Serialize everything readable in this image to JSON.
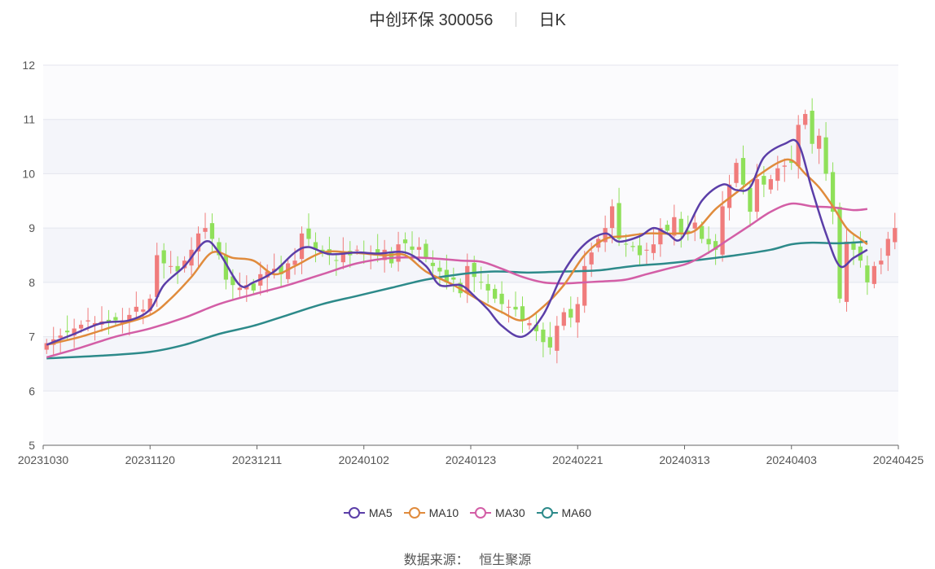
{
  "header": {
    "stock_name": "中创环保 300056",
    "period": "日K"
  },
  "source": {
    "label": "数据来源：",
    "name": "恒生聚源"
  },
  "legend": [
    {
      "name": "MA5",
      "color": "#5b3ea8"
    },
    {
      "name": "MA10",
      "color": "#e08b3c"
    },
    {
      "name": "MA30",
      "color": "#d35ea6"
    },
    {
      "name": "MA60",
      "color": "#2d8a8a"
    }
  ],
  "chart_data": {
    "type": "candlestick",
    "title": "中创环保 300056",
    "subtitle": "日K",
    "ylim": [
      5,
      12
    ],
    "yticks": [
      5,
      6,
      7,
      8,
      9,
      10,
      11,
      12
    ],
    "x_tick_labels": [
      "20231030",
      "20231120",
      "20231211",
      "20240102",
      "20240123",
      "20240221",
      "20240313",
      "20240403",
      "20240425"
    ],
    "grid": true,
    "legend_position": "bottom",
    "up_color": "#f07c7c",
    "down_color": "#8fe05a",
    "close": [
      6.88,
      6.95,
      7.02,
      7.08,
      7.15,
      7.22,
      7.3,
      7.25,
      7.28,
      7.27,
      7.3,
      7.3,
      7.4,
      7.55,
      7.5,
      7.7,
      8.5,
      8.35,
      8.3,
      8.2,
      8.4,
      8.6,
      8.9,
      9.0,
      8.8,
      8.5,
      8.05,
      7.95,
      7.9,
      7.95,
      7.85,
      8.15,
      8.2,
      8.25,
      8.15,
      8.35,
      8.4,
      8.9,
      8.8,
      8.6,
      8.55,
      8.5,
      8.4,
      8.55,
      8.5,
      8.6,
      8.52,
      8.55,
      8.5,
      8.6,
      8.35,
      8.7,
      8.72,
      8.6,
      8.65,
      8.45,
      8.3,
      8.2,
      8.0,
      8.05,
      7.8,
      8.3,
      8.1,
      8.0,
      7.85,
      7.7,
      7.6,
      7.55,
      7.5,
      7.3,
      7.25,
      7.1,
      6.9,
      6.8,
      7.2,
      7.45,
      7.35,
      7.6,
      8.3,
      8.55,
      8.8,
      9.0,
      9.4,
      8.8,
      8.7,
      8.65,
      8.5,
      8.6,
      8.7,
      9.0,
      8.95,
      9.2,
      8.92,
      8.9,
      9.1,
      8.8,
      8.7,
      8.6,
      9.4,
      9.8,
      10.2,
      9.8,
      9.3,
      9.9,
      9.8,
      9.9,
      10.1,
      10.15,
      10.2,
      10.9,
      11.1,
      10.55,
      10.7,
      10.0,
      9.3,
      7.7,
      8.75,
      8.6,
      8.4,
      8.0,
      8.3,
      8.4,
      8.8,
      9.0
    ],
    "ma5_anchors": [
      [
        0,
        6.85
      ],
      [
        4,
        7.05
      ],
      [
        8,
        7.25
      ],
      [
        12,
        7.3
      ],
      [
        15,
        7.5
      ],
      [
        17,
        7.95
      ],
      [
        20,
        8.3
      ],
      [
        23,
        8.75
      ],
      [
        25,
        8.55
      ],
      [
        28,
        7.95
      ],
      [
        30,
        8.0
      ],
      [
        33,
        8.2
      ],
      [
        36,
        8.55
      ],
      [
        38,
        8.65
      ],
      [
        41,
        8.52
      ],
      [
        45,
        8.55
      ],
      [
        48,
        8.53
      ],
      [
        52,
        8.55
      ],
      [
        55,
        8.3
      ],
      [
        57,
        7.95
      ],
      [
        60,
        7.95
      ],
      [
        62,
        7.75
      ],
      [
        64,
        7.5
      ],
      [
        66,
        7.2
      ],
      [
        69,
        7.0
      ],
      [
        72,
        7.4
      ],
      [
        75,
        8.2
      ],
      [
        78,
        8.7
      ],
      [
        81,
        8.9
      ],
      [
        83,
        8.75
      ],
      [
        86,
        8.85
      ],
      [
        88,
        9.0
      ],
      [
        90,
        8.9
      ],
      [
        92,
        8.8
      ],
      [
        95,
        9.5
      ],
      [
        98,
        9.8
      ],
      [
        100,
        9.7
      ],
      [
        102,
        9.75
      ],
      [
        104,
        10.3
      ],
      [
        107,
        10.55
      ],
      [
        109,
        10.55
      ],
      [
        111,
        9.7
      ],
      [
        113,
        8.9
      ],
      [
        115,
        8.3
      ],
      [
        117,
        8.45
      ],
      [
        119,
        8.6
      ]
    ],
    "ma10_anchors": [
      [
        0,
        6.85
      ],
      [
        5,
        7.0
      ],
      [
        10,
        7.2
      ],
      [
        15,
        7.4
      ],
      [
        18,
        7.7
      ],
      [
        21,
        8.1
      ],
      [
        24,
        8.55
      ],
      [
        27,
        8.45
      ],
      [
        30,
        8.4
      ],
      [
        33,
        8.15
      ],
      [
        36,
        8.3
      ],
      [
        40,
        8.55
      ],
      [
        44,
        8.55
      ],
      [
        49,
        8.5
      ],
      [
        52,
        8.5
      ],
      [
        55,
        8.2
      ],
      [
        59,
        7.95
      ],
      [
        63,
        7.65
      ],
      [
        66,
        7.45
      ],
      [
        69,
        7.3
      ],
      [
        72,
        7.55
      ],
      [
        75,
        7.95
      ],
      [
        78,
        8.5
      ],
      [
        81,
        8.8
      ],
      [
        84,
        8.85
      ],
      [
        87,
        8.9
      ],
      [
        91,
        8.9
      ],
      [
        94,
        8.95
      ],
      [
        97,
        9.35
      ],
      [
        100,
        9.65
      ],
      [
        103,
        9.95
      ],
      [
        106,
        10.2
      ],
      [
        108,
        10.25
      ],
      [
        110,
        10.0
      ],
      [
        112,
        9.75
      ],
      [
        114,
        9.4
      ],
      [
        116,
        9.0
      ],
      [
        118,
        8.8
      ],
      [
        119,
        8.7
      ]
    ],
    "ma30_anchors": [
      [
        0,
        6.62
      ],
      [
        5,
        6.8
      ],
      [
        10,
        7.0
      ],
      [
        15,
        7.15
      ],
      [
        20,
        7.35
      ],
      [
        25,
        7.6
      ],
      [
        30,
        7.78
      ],
      [
        35,
        7.95
      ],
      [
        40,
        8.15
      ],
      [
        45,
        8.35
      ],
      [
        50,
        8.45
      ],
      [
        55,
        8.45
      ],
      [
        60,
        8.4
      ],
      [
        63,
        8.38
      ],
      [
        66,
        8.25
      ],
      [
        69,
        8.1
      ],
      [
        72,
        8.0
      ],
      [
        75,
        7.98
      ],
      [
        78,
        8.0
      ],
      [
        81,
        8.02
      ],
      [
        84,
        8.05
      ],
      [
        87,
        8.15
      ],
      [
        90,
        8.25
      ],
      [
        93,
        8.35
      ],
      [
        96,
        8.55
      ],
      [
        99,
        8.8
      ],
      [
        102,
        9.05
      ],
      [
        105,
        9.3
      ],
      [
        108,
        9.45
      ],
      [
        111,
        9.4
      ],
      [
        114,
        9.38
      ],
      [
        117,
        9.33
      ],
      [
        119,
        9.35
      ]
    ],
    "ma60_anchors": [
      [
        0,
        6.6
      ],
      [
        8,
        6.65
      ],
      [
        15,
        6.72
      ],
      [
        20,
        6.85
      ],
      [
        25,
        7.05
      ],
      [
        30,
        7.2
      ],
      [
        35,
        7.4
      ],
      [
        40,
        7.6
      ],
      [
        45,
        7.75
      ],
      [
        50,
        7.9
      ],
      [
        55,
        8.05
      ],
      [
        60,
        8.15
      ],
      [
        65,
        8.2
      ],
      [
        70,
        8.18
      ],
      [
        75,
        8.2
      ],
      [
        80,
        8.22
      ],
      [
        85,
        8.3
      ],
      [
        90,
        8.35
      ],
      [
        95,
        8.42
      ],
      [
        100,
        8.5
      ],
      [
        105,
        8.6
      ],
      [
        108,
        8.7
      ],
      [
        111,
        8.73
      ],
      [
        115,
        8.72
      ],
      [
        119,
        8.75
      ]
    ]
  }
}
